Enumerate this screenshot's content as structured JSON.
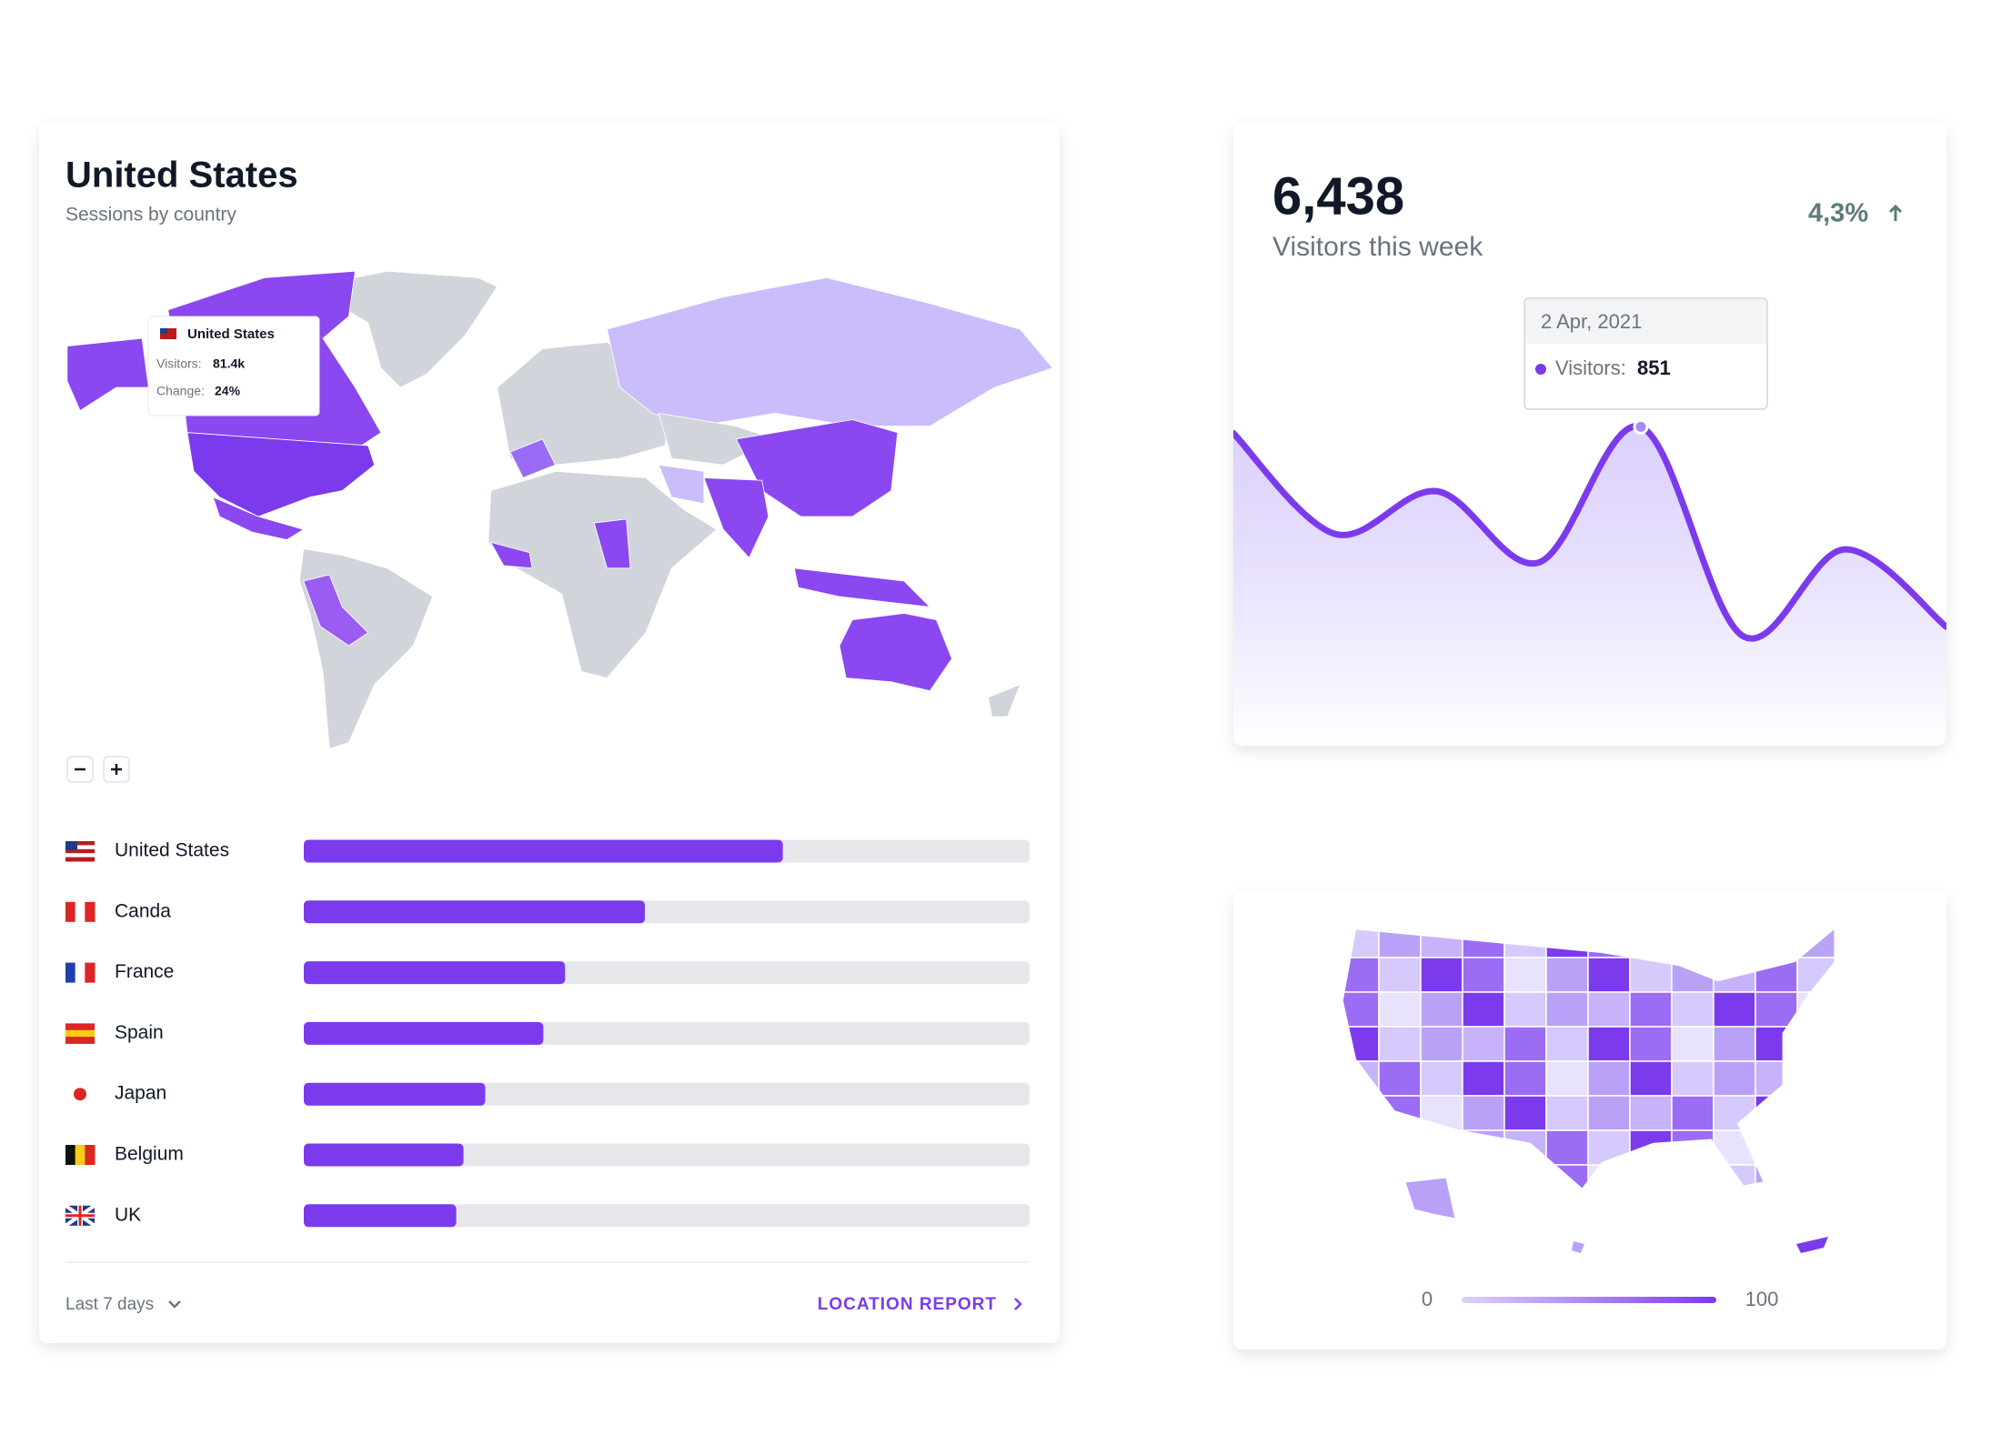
{
  "world_card": {
    "title": "United States",
    "subtitle": "Sessions by country",
    "map_tooltip": {
      "country": "United States",
      "visitors_label": "Visitors:",
      "visitors": "81.4k",
      "change_label": "Change:",
      "change": "24%"
    },
    "countries": {
      "xlim": [
        0,
        100
      ],
      "items": [
        {
          "name": "United States",
          "value": 66
        },
        {
          "name": "Canda",
          "value": 47
        },
        {
          "name": "France",
          "value": 36
        },
        {
          "name": "Spain",
          "value": 33
        },
        {
          "name": "Japan",
          "value": 25
        },
        {
          "name": "Belgium",
          "value": 22
        },
        {
          "name": "UK",
          "value": 21
        }
      ]
    },
    "footer": {
      "range": "Last 7 days",
      "link": "LOCATION REPORT"
    }
  },
  "visitors_card": {
    "value": "6,438",
    "label": "Visitors this week",
    "change": "4,3%",
    "tooltip": {
      "date": "2 Apr, 2021",
      "label": "Visitors:",
      "value": "851"
    },
    "chart": {
      "type": "line",
      "values": [
        834,
        565,
        679,
        489,
        851,
        293,
        524,
        317
      ],
      "ylim": [
        0,
        1000
      ],
      "color": "#7c3aed"
    }
  },
  "states_card": {
    "legend": {
      "min": 0,
      "max": 100
    }
  }
}
